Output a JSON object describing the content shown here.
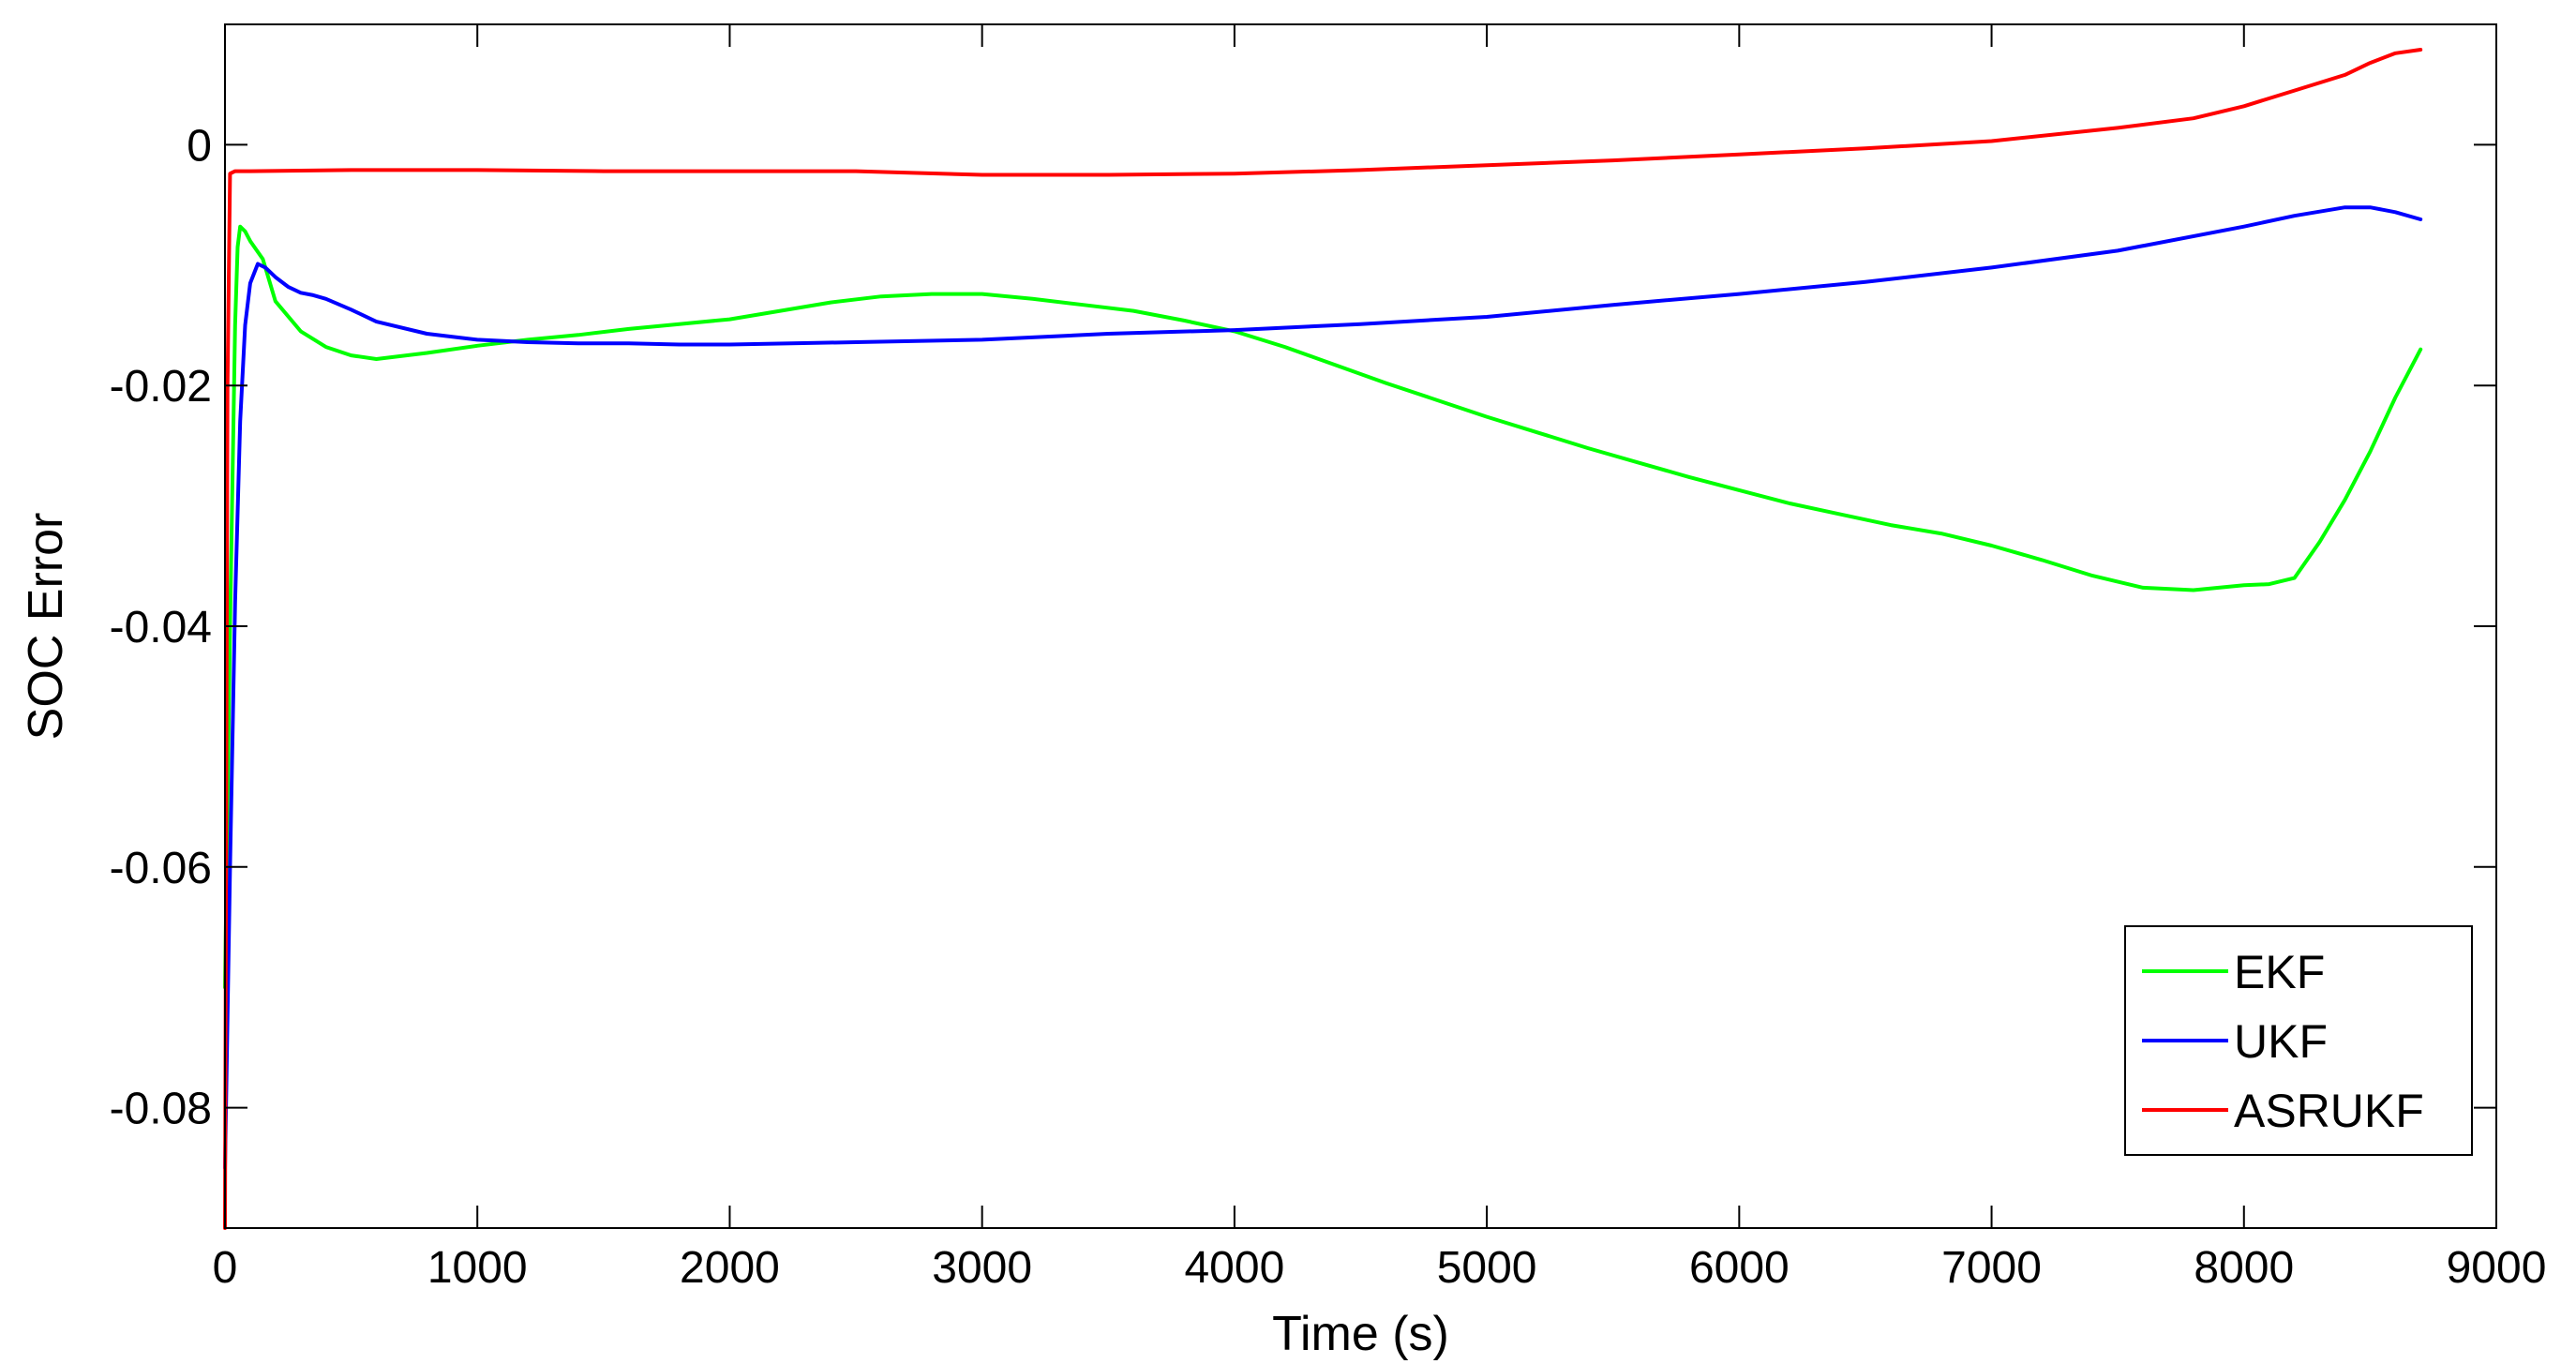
{
  "chart_data": {
    "type": "line",
    "title": "",
    "xlabel": "Time (s)",
    "ylabel": "SOC Error",
    "xlim": [
      0,
      9000
    ],
    "ylim": [
      -0.09,
      0.01
    ],
    "x_ticks": [
      0,
      1000,
      2000,
      3000,
      4000,
      5000,
      6000,
      7000,
      8000,
      9000
    ],
    "x_tick_labels": [
      "0",
      "1000",
      "2000",
      "3000",
      "4000",
      "5000",
      "6000",
      "7000",
      "8000",
      "9000"
    ],
    "y_ticks": [
      0,
      -0.02,
      -0.04,
      -0.06,
      -0.08
    ],
    "y_tick_labels": [
      "0",
      "-0.02",
      "-0.04",
      "-0.06",
      "-0.08"
    ],
    "grid": false,
    "legend_position": "bottom-right",
    "series": [
      {
        "name": "EKF",
        "color": "#00ff00",
        "x": [
          0,
          20,
          40,
          50,
          60,
          80,
          100,
          150,
          200,
          300,
          400,
          500,
          600,
          800,
          1000,
          1200,
          1400,
          1600,
          1800,
          2000,
          2200,
          2400,
          2600,
          2800,
          3000,
          3200,
          3400,
          3600,
          3800,
          4000,
          4200,
          4400,
          4600,
          4800,
          5000,
          5200,
          5400,
          5600,
          5800,
          6000,
          6200,
          6400,
          6600,
          6800,
          7000,
          7200,
          7400,
          7600,
          7800,
          8000,
          8100,
          8200,
          8300,
          8400,
          8500,
          8600,
          8700
        ],
        "y": [
          -0.07,
          -0.04,
          -0.015,
          -0.0085,
          -0.0068,
          -0.0072,
          -0.008,
          -0.0095,
          -0.013,
          -0.0155,
          -0.0168,
          -0.0175,
          -0.0178,
          -0.0173,
          -0.0167,
          -0.0162,
          -0.0158,
          -0.0153,
          -0.0149,
          -0.0145,
          -0.0138,
          -0.0131,
          -0.0126,
          -0.0124,
          -0.0124,
          -0.0128,
          -0.0133,
          -0.0138,
          -0.0146,
          -0.0155,
          -0.0168,
          -0.0183,
          -0.0198,
          -0.0212,
          -0.0226,
          -0.0239,
          -0.0252,
          -0.0264,
          -0.0276,
          -0.0287,
          -0.0298,
          -0.0307,
          -0.0316,
          -0.0323,
          -0.0333,
          -0.0345,
          -0.0358,
          -0.0368,
          -0.037,
          -0.0366,
          -0.0365,
          -0.036,
          -0.033,
          -0.0295,
          -0.0255,
          -0.021,
          -0.017
        ]
      },
      {
        "name": "UKF",
        "color": "#0000ff",
        "x": [
          0,
          20,
          40,
          60,
          80,
          100,
          130,
          160,
          200,
          250,
          300,
          350,
          400,
          500,
          600,
          800,
          1000,
          1200,
          1400,
          1600,
          1800,
          2000,
          2500,
          3000,
          3500,
          4000,
          4500,
          5000,
          5500,
          6000,
          6500,
          7000,
          7500,
          8000,
          8200,
          8400,
          8500,
          8600,
          8700
        ],
        "y": [
          -0.085,
          -0.06,
          -0.038,
          -0.023,
          -0.015,
          -0.0115,
          -0.0099,
          -0.0102,
          -0.011,
          -0.0118,
          -0.0123,
          -0.0125,
          -0.0128,
          -0.0137,
          -0.0147,
          -0.0157,
          -0.0162,
          -0.0164,
          -0.0165,
          -0.0165,
          -0.0166,
          -0.0166,
          -0.0164,
          -0.0162,
          -0.0157,
          -0.0154,
          -0.0149,
          -0.0143,
          -0.0133,
          -0.0124,
          -0.0114,
          -0.0102,
          -0.0088,
          -0.0068,
          -0.0059,
          -0.0052,
          -0.0052,
          -0.0056,
          -0.0062
        ]
      },
      {
        "name": "ASRUKF",
        "color": "#ff0000",
        "x": [
          0,
          10,
          20,
          40,
          100,
          500,
          1000,
          1500,
          2000,
          2500,
          3000,
          3500,
          4000,
          4500,
          5000,
          5500,
          6000,
          6500,
          7000,
          7500,
          7800,
          8000,
          8200,
          8400,
          8500,
          8600,
          8700
        ],
        "y": [
          -0.09,
          -0.02,
          -0.0024,
          -0.0022,
          -0.0022,
          -0.0021,
          -0.0021,
          -0.0022,
          -0.0022,
          -0.0022,
          -0.0025,
          -0.0025,
          -0.0024,
          -0.0021,
          -0.0017,
          -0.0013,
          -0.0008,
          -0.0003,
          0.0003,
          0.0014,
          0.0022,
          0.0032,
          0.0045,
          0.0058,
          0.0068,
          0.0076,
          0.0079
        ]
      }
    ]
  }
}
